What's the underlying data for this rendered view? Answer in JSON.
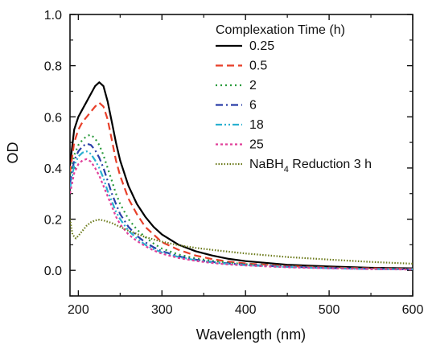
{
  "chart_data": {
    "type": "line",
    "title": "",
    "xlabel": "Wavelength (nm)",
    "ylabel": "OD",
    "xlim": [
      190,
      600
    ],
    "ylim": [
      -0.1,
      1.0
    ],
    "xticks": [
      200,
      300,
      400,
      500,
      600
    ],
    "xtick_labels": [
      "200",
      "300",
      "400",
      "500",
      "600"
    ],
    "yticks": [
      0.0,
      0.2,
      0.4,
      0.6,
      0.8,
      1.0
    ],
    "ytick_labels": [
      "0.0",
      "0.2",
      "0.4",
      "0.6",
      "0.8",
      "1.0"
    ],
    "grid": false,
    "legend": {
      "title": "Complexation Time (h)",
      "placement": "top-right"
    },
    "series": [
      {
        "name": "0.25",
        "color": "#000000",
        "dash": "solid",
        "points": [
          [
            190,
            0.41
          ],
          [
            195,
            0.55
          ],
          [
            200,
            0.6
          ],
          [
            205,
            0.63
          ],
          [
            210,
            0.66
          ],
          [
            215,
            0.69
          ],
          [
            220,
            0.72
          ],
          [
            225,
            0.735
          ],
          [
            230,
            0.72
          ],
          [
            235,
            0.66
          ],
          [
            240,
            0.58
          ],
          [
            245,
            0.5
          ],
          [
            250,
            0.43
          ],
          [
            260,
            0.33
          ],
          [
            270,
            0.26
          ],
          [
            280,
            0.21
          ],
          [
            290,
            0.17
          ],
          [
            300,
            0.14
          ],
          [
            320,
            0.1
          ],
          [
            340,
            0.075
          ],
          [
            360,
            0.058
          ],
          [
            380,
            0.045
          ],
          [
            400,
            0.036
          ],
          [
            450,
            0.022
          ],
          [
            500,
            0.015
          ],
          [
            550,
            0.01
          ],
          [
            600,
            0.008
          ]
        ]
      },
      {
        "name": "0.5",
        "color": "#e8402a",
        "dash": "dashed",
        "points": [
          [
            190,
            0.38
          ],
          [
            195,
            0.5
          ],
          [
            200,
            0.55
          ],
          [
            205,
            0.58
          ],
          [
            210,
            0.6
          ],
          [
            215,
            0.62
          ],
          [
            220,
            0.64
          ],
          [
            225,
            0.655
          ],
          [
            230,
            0.64
          ],
          [
            235,
            0.59
          ],
          [
            240,
            0.51
          ],
          [
            245,
            0.43
          ],
          [
            250,
            0.37
          ],
          [
            260,
            0.28
          ],
          [
            270,
            0.22
          ],
          [
            280,
            0.17
          ],
          [
            290,
            0.14
          ],
          [
            300,
            0.11
          ],
          [
            320,
            0.08
          ],
          [
            340,
            0.058
          ],
          [
            360,
            0.044
          ],
          [
            380,
            0.034
          ],
          [
            400,
            0.027
          ],
          [
            450,
            0.017
          ],
          [
            500,
            0.011
          ],
          [
            550,
            0.008
          ],
          [
            600,
            0.006
          ]
        ]
      },
      {
        "name": "2",
        "color": "#2a9b3c",
        "dash": "dotted",
        "points": [
          [
            190,
            0.36
          ],
          [
            195,
            0.45
          ],
          [
            200,
            0.49
          ],
          [
            205,
            0.51
          ],
          [
            210,
            0.525
          ],
          [
            215,
            0.53
          ],
          [
            220,
            0.515
          ],
          [
            225,
            0.49
          ],
          [
            230,
            0.45
          ],
          [
            235,
            0.4
          ],
          [
            240,
            0.35
          ],
          [
            245,
            0.3
          ],
          [
            250,
            0.26
          ],
          [
            260,
            0.2
          ],
          [
            270,
            0.16
          ],
          [
            280,
            0.13
          ],
          [
            290,
            0.105
          ],
          [
            300,
            0.085
          ],
          [
            320,
            0.062
          ],
          [
            340,
            0.047
          ],
          [
            360,
            0.037
          ],
          [
            380,
            0.03
          ],
          [
            400,
            0.024
          ],
          [
            450,
            0.015
          ],
          [
            500,
            0.01
          ],
          [
            550,
            0.007
          ],
          [
            600,
            0.005
          ]
        ]
      },
      {
        "name": "6",
        "color": "#2a3fa8",
        "dash": "dashdot",
        "points": [
          [
            190,
            0.34
          ],
          [
            195,
            0.43
          ],
          [
            200,
            0.465
          ],
          [
            205,
            0.485
          ],
          [
            210,
            0.495
          ],
          [
            215,
            0.49
          ],
          [
            220,
            0.47
          ],
          [
            225,
            0.44
          ],
          [
            230,
            0.4
          ],
          [
            235,
            0.35
          ],
          [
            240,
            0.3
          ],
          [
            245,
            0.26
          ],
          [
            250,
            0.22
          ],
          [
            260,
            0.17
          ],
          [
            270,
            0.135
          ],
          [
            280,
            0.11
          ],
          [
            290,
            0.09
          ],
          [
            300,
            0.075
          ],
          [
            320,
            0.055
          ],
          [
            340,
            0.042
          ],
          [
            360,
            0.033
          ],
          [
            380,
            0.027
          ],
          [
            400,
            0.022
          ],
          [
            450,
            0.014
          ],
          [
            500,
            0.009
          ],
          [
            550,
            0.006
          ],
          [
            600,
            0.004
          ]
        ]
      },
      {
        "name": "18",
        "color": "#2ab0d0",
        "dash": "dashdotdot",
        "points": [
          [
            190,
            0.32
          ],
          [
            195,
            0.41
          ],
          [
            200,
            0.445
          ],
          [
            205,
            0.46
          ],
          [
            210,
            0.465
          ],
          [
            215,
            0.455
          ],
          [
            220,
            0.43
          ],
          [
            225,
            0.4
          ],
          [
            230,
            0.36
          ],
          [
            235,
            0.31
          ],
          [
            240,
            0.27
          ],
          [
            245,
            0.23
          ],
          [
            250,
            0.2
          ],
          [
            260,
            0.155
          ],
          [
            270,
            0.125
          ],
          [
            280,
            0.1
          ],
          [
            290,
            0.083
          ],
          [
            300,
            0.07
          ],
          [
            320,
            0.052
          ],
          [
            340,
            0.04
          ],
          [
            360,
            0.031
          ],
          [
            380,
            0.025
          ],
          [
            400,
            0.02
          ],
          [
            450,
            0.013
          ],
          [
            500,
            0.008
          ],
          [
            550,
            0.005
          ],
          [
            600,
            0.004
          ]
        ]
      },
      {
        "name": "25",
        "color": "#e0409a",
        "dash": "shortdot",
        "points": [
          [
            190,
            0.3
          ],
          [
            195,
            0.38
          ],
          [
            200,
            0.415
          ],
          [
            205,
            0.43
          ],
          [
            210,
            0.435
          ],
          [
            215,
            0.425
          ],
          [
            220,
            0.4
          ],
          [
            225,
            0.37
          ],
          [
            230,
            0.33
          ],
          [
            235,
            0.29
          ],
          [
            240,
            0.25
          ],
          [
            245,
            0.21
          ],
          [
            250,
            0.18
          ],
          [
            260,
            0.14
          ],
          [
            270,
            0.115
          ],
          [
            280,
            0.095
          ],
          [
            290,
            0.078
          ],
          [
            300,
            0.065
          ],
          [
            320,
            0.048
          ],
          [
            340,
            0.037
          ],
          [
            360,
            0.029
          ],
          [
            380,
            0.023
          ],
          [
            400,
            0.019
          ],
          [
            450,
            0.012
          ],
          [
            500,
            0.008
          ],
          [
            550,
            0.005
          ],
          [
            600,
            0.003
          ]
        ]
      },
      {
        "name_parts": [
          "NaBH",
          "4",
          " Reduction 3 h"
        ],
        "color": "#6b7a1a",
        "dash": "fine-dotted",
        "points": [
          [
            190,
            0.2
          ],
          [
            193,
            0.14
          ],
          [
            197,
            0.125
          ],
          [
            200,
            0.135
          ],
          [
            205,
            0.155
          ],
          [
            210,
            0.175
          ],
          [
            215,
            0.188
          ],
          [
            220,
            0.195
          ],
          [
            225,
            0.198
          ],
          [
            230,
            0.195
          ],
          [
            240,
            0.185
          ],
          [
            250,
            0.17
          ],
          [
            260,
            0.155
          ],
          [
            280,
            0.13
          ],
          [
            300,
            0.112
          ],
          [
            320,
            0.098
          ],
          [
            340,
            0.088
          ],
          [
            360,
            0.08
          ],
          [
            380,
            0.073
          ],
          [
            400,
            0.066
          ],
          [
            450,
            0.052
          ],
          [
            500,
            0.042
          ],
          [
            550,
            0.033
          ],
          [
            600,
            0.026
          ]
        ]
      }
    ]
  }
}
